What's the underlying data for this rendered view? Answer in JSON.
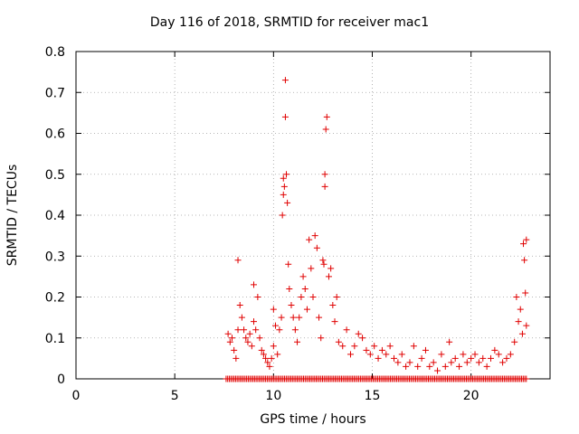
{
  "chart_data": {
    "type": "scatter",
    "title": "Day 116 of 2018, SRMTID for receiver mac1",
    "xlabel": "GPS time / hours",
    "ylabel": "SRMTID / TECUs",
    "xlim": [
      0,
      24
    ],
    "ylim": [
      0,
      0.8
    ],
    "xticks": [
      0,
      5,
      10,
      15,
      20
    ],
    "yticks": [
      0,
      0.1,
      0.2,
      0.3,
      0.4,
      0.5,
      0.6,
      0.7,
      0.8
    ],
    "grid": true,
    "legend": "none",
    "marker": "+",
    "color": "#e00000",
    "series": [
      {
        "points": [
          [
            7.7,
            0.11
          ],
          [
            7.8,
            0.09
          ],
          [
            7.9,
            0.1
          ],
          [
            8.0,
            0.07
          ],
          [
            8.1,
            0.05
          ],
          [
            8.2,
            0.29
          ],
          [
            8.2,
            0.12
          ],
          [
            8.3,
            0.18
          ],
          [
            8.4,
            0.15
          ],
          [
            8.5,
            0.12
          ],
          [
            8.6,
            0.1
          ],
          [
            8.7,
            0.09
          ],
          [
            8.8,
            0.11
          ],
          [
            8.9,
            0.08
          ],
          [
            9.0,
            0.23
          ],
          [
            9.0,
            0.14
          ],
          [
            9.1,
            0.12
          ],
          [
            9.2,
            0.2
          ],
          [
            9.3,
            0.1
          ],
          [
            9.4,
            0.07
          ],
          [
            9.5,
            0.06
          ],
          [
            9.6,
            0.05
          ],
          [
            9.7,
            0.04
          ],
          [
            9.8,
            0.03
          ],
          [
            9.9,
            0.05
          ],
          [
            10.0,
            0.08
          ],
          [
            10.0,
            0.17
          ],
          [
            10.1,
            0.13
          ],
          [
            10.2,
            0.06
          ],
          [
            10.3,
            0.12
          ],
          [
            10.4,
            0.15
          ],
          [
            10.45,
            0.4
          ],
          [
            10.5,
            0.49
          ],
          [
            10.5,
            0.45
          ],
          [
            10.55,
            0.47
          ],
          [
            10.6,
            0.73
          ],
          [
            10.6,
            0.64
          ],
          [
            10.65,
            0.5
          ],
          [
            10.7,
            0.43
          ],
          [
            10.75,
            0.28
          ],
          [
            10.8,
            0.22
          ],
          [
            10.9,
            0.18
          ],
          [
            11.0,
            0.15
          ],
          [
            11.1,
            0.12
          ],
          [
            11.2,
            0.09
          ],
          [
            11.3,
            0.15
          ],
          [
            11.4,
            0.2
          ],
          [
            11.5,
            0.25
          ],
          [
            11.6,
            0.22
          ],
          [
            11.7,
            0.17
          ],
          [
            11.8,
            0.34
          ],
          [
            11.9,
            0.27
          ],
          [
            12.0,
            0.2
          ],
          [
            12.1,
            0.35
          ],
          [
            12.2,
            0.32
          ],
          [
            12.3,
            0.15
          ],
          [
            12.4,
            0.1
          ],
          [
            12.5,
            0.29
          ],
          [
            12.55,
            0.28
          ],
          [
            12.6,
            0.5
          ],
          [
            12.6,
            0.47
          ],
          [
            12.65,
            0.61
          ],
          [
            12.7,
            0.64
          ],
          [
            12.8,
            0.25
          ],
          [
            12.9,
            0.27
          ],
          [
            13.0,
            0.18
          ],
          [
            13.1,
            0.14
          ],
          [
            13.2,
            0.2
          ],
          [
            13.3,
            0.09
          ],
          [
            13.5,
            0.08
          ],
          [
            13.7,
            0.12
          ],
          [
            13.9,
            0.06
          ],
          [
            14.1,
            0.08
          ],
          [
            14.3,
            0.11
          ],
          [
            14.5,
            0.1
          ],
          [
            14.7,
            0.07
          ],
          [
            14.9,
            0.06
          ],
          [
            15.1,
            0.08
          ],
          [
            15.3,
            0.05
          ],
          [
            15.5,
            0.07
          ],
          [
            15.7,
            0.06
          ],
          [
            15.9,
            0.08
          ],
          [
            16.1,
            0.05
          ],
          [
            16.3,
            0.04
          ],
          [
            16.5,
            0.06
          ],
          [
            16.7,
            0.03
          ],
          [
            16.9,
            0.04
          ],
          [
            17.1,
            0.08
          ],
          [
            17.3,
            0.03
          ],
          [
            17.5,
            0.05
          ],
          [
            17.7,
            0.07
          ],
          [
            17.9,
            0.03
          ],
          [
            18.1,
            0.04
          ],
          [
            18.3,
            0.02
          ],
          [
            18.5,
            0.06
          ],
          [
            18.7,
            0.03
          ],
          [
            18.9,
            0.09
          ],
          [
            19.0,
            0.04
          ],
          [
            19.2,
            0.05
          ],
          [
            19.4,
            0.03
          ],
          [
            19.6,
            0.06
          ],
          [
            19.8,
            0.04
          ],
          [
            20.0,
            0.05
          ],
          [
            20.2,
            0.06
          ],
          [
            20.4,
            0.04
          ],
          [
            20.6,
            0.05
          ],
          [
            20.8,
            0.03
          ],
          [
            21.0,
            0.05
          ],
          [
            21.2,
            0.07
          ],
          [
            21.4,
            0.06
          ],
          [
            21.6,
            0.04
          ],
          [
            21.8,
            0.05
          ],
          [
            22.0,
            0.06
          ],
          [
            22.2,
            0.09
          ],
          [
            22.3,
            0.2
          ],
          [
            22.4,
            0.14
          ],
          [
            22.5,
            0.17
          ],
          [
            22.6,
            0.11
          ],
          [
            22.65,
            0.33
          ],
          [
            22.7,
            0.29
          ],
          [
            22.75,
            0.21
          ],
          [
            22.8,
            0.34
          ],
          [
            22.8,
            0.13
          ]
        ]
      }
    ],
    "baseline_band": {
      "x_from": 7.6,
      "x_to": 22.8,
      "y": 0
    }
  }
}
